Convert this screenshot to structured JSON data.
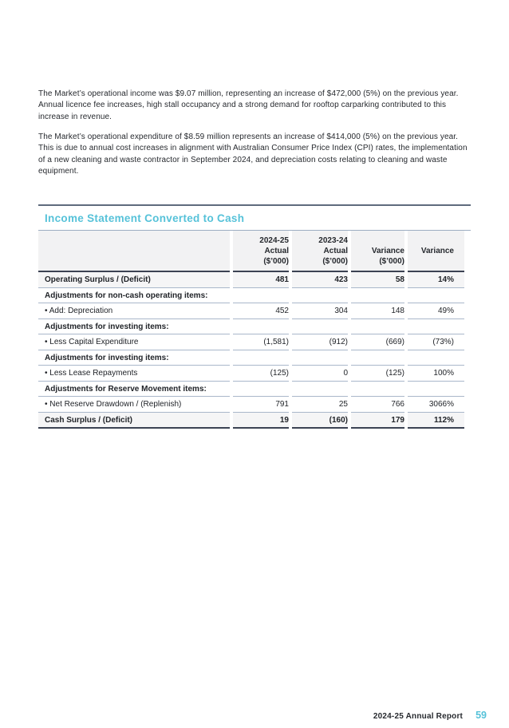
{
  "document": {
    "paragraphs": [
      "The Market’s operational income was $9.07 million, representing an increase of $472,000 (5%) on the previous year. Annual licence fee increases, high stall occupancy and a strong demand for rooftop carparking contributed to this increase in revenue.",
      "The Market’s operational expenditure of $8.59 million represents an increase of $414,000 (5%) on the previous year. This is due to annual cost increases in alignment with Australian Consumer Price Index (CPI) rates, the implementation of a new cleaning and waste contractor in September 2024, and depreciation costs relating to cleaning and waste equipment."
    ]
  },
  "table": {
    "title": "Income Statement Converted to Cash",
    "columns": [
      {
        "label": ""
      },
      {
        "label": "2024-25\nActual\n($’000)"
      },
      {
        "label": "2023-24\nActual\n($’000)"
      },
      {
        "label": "Variance\n($’000)"
      },
      {
        "label": "Variance"
      }
    ],
    "rows": [
      {
        "type": "total",
        "label": "Operating Surplus / (Deficit)",
        "values": [
          "481",
          "423",
          "58",
          "14%"
        ]
      },
      {
        "type": "section",
        "label": "Adjustments for non-cash operating items:",
        "values": [
          "",
          "",
          "",
          ""
        ]
      },
      {
        "type": "item",
        "label": "• Add: Depreciation",
        "values": [
          "452",
          "304",
          "148",
          "49%"
        ]
      },
      {
        "type": "section",
        "label": "Adjustments for investing items:",
        "values": [
          "",
          "",
          "",
          ""
        ]
      },
      {
        "type": "item",
        "label": "• Less Capital Expenditure",
        "values": [
          "(1,581)",
          "(912)",
          "(669)",
          "(73%)"
        ]
      },
      {
        "type": "section",
        "label": "Adjustments for investing items:",
        "values": [
          "",
          "",
          "",
          ""
        ]
      },
      {
        "type": "item",
        "label": "• Less Lease Repayments",
        "values": [
          "(125)",
          "0",
          "(125)",
          "100%"
        ]
      },
      {
        "type": "section",
        "label": "Adjustments for Reserve Movement items:",
        "values": [
          "",
          "",
          "",
          ""
        ]
      },
      {
        "type": "item",
        "label": "• Net Reserve Drawdown / (Replenish)",
        "values": [
          "791",
          "25",
          "766",
          "3066%"
        ]
      },
      {
        "type": "total",
        "label": "Cash Surplus / (Deficit)",
        "values": [
          "19",
          "(160)",
          "179",
          "112%"
        ]
      }
    ]
  },
  "footer": {
    "report_label": "2024-25 Annual Report",
    "page_number": "59"
  },
  "colors": {
    "accent_teal": "#56c2d9",
    "dark_rule": "#3c4353",
    "medium_rule": "#5f6b7d",
    "light_rule": "#a9b7ca",
    "header_bg": "#f2f2f3",
    "total_row_bg": "#f5f5f6",
    "text": "#26292e"
  }
}
